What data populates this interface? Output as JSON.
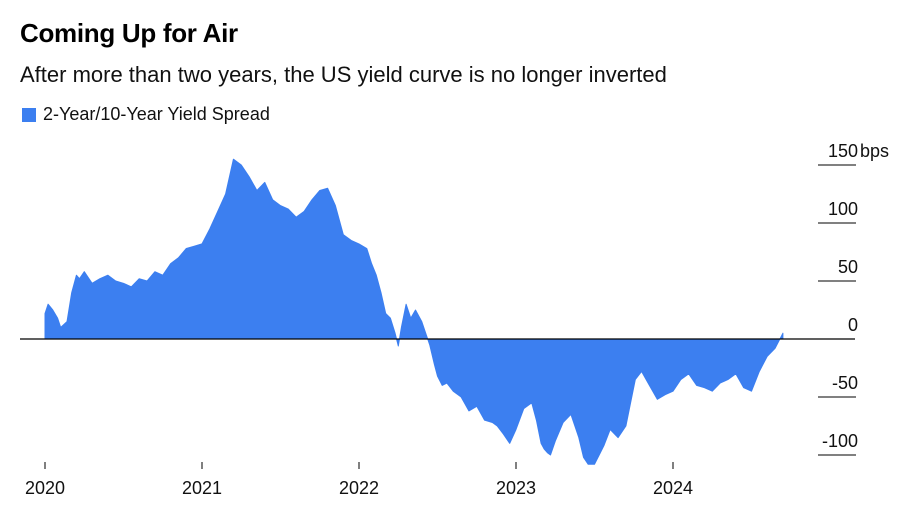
{
  "header": {
    "title": "Coming Up for Air",
    "subtitle": "After more than two years, the US yield curve is no longer inverted"
  },
  "legend": {
    "label": "2-Year/10-Year Yield Spread",
    "color": "#3c7ff0"
  },
  "chart_data": {
    "type": "area",
    "title": "Coming Up for Air",
    "subtitle": "After more than two years, the US yield curve is no longer inverted",
    "series": [
      {
        "name": "2-Year/10-Year Yield Spread",
        "color": "#3c7ff0",
        "x": [
          2020.0,
          2020.02,
          2020.05,
          2020.08,
          2020.1,
          2020.14,
          2020.17,
          2020.2,
          2020.22,
          2020.25,
          2020.3,
          2020.35,
          2020.4,
          2020.45,
          2020.5,
          2020.55,
          2020.6,
          2020.65,
          2020.7,
          2020.75,
          2020.8,
          2020.85,
          2020.9,
          2020.95,
          2021.0,
          2021.05,
          2021.1,
          2021.15,
          2021.2,
          2021.25,
          2021.3,
          2021.35,
          2021.4,
          2021.45,
          2021.5,
          2021.55,
          2021.6,
          2021.65,
          2021.7,
          2021.75,
          2021.8,
          2021.85,
          2021.9,
          2021.95,
          2022.0,
          2022.05,
          2022.08,
          2022.11,
          2022.14,
          2022.17,
          2022.2,
          2022.23,
          2022.25,
          2022.27,
          2022.3,
          2022.33,
          2022.36,
          2022.4,
          2022.43,
          2022.45,
          2022.48,
          2022.5,
          2022.53,
          2022.56,
          2022.6,
          2022.65,
          2022.7,
          2022.75,
          2022.8,
          2022.85,
          2022.88,
          2022.92,
          2022.96,
          2023.0,
          2023.05,
          2023.1,
          2023.13,
          2023.16,
          2023.18,
          2023.2,
          2023.22,
          2023.25,
          2023.3,
          2023.35,
          2023.4,
          2023.43,
          2023.46,
          2023.5,
          2023.53,
          2023.56,
          2023.6,
          2023.65,
          2023.7,
          2023.73,
          2023.76,
          2023.8,
          2023.85,
          2023.9,
          2023.95,
          2024.0,
          2024.05,
          2024.1,
          2024.15,
          2024.2,
          2024.25,
          2024.3,
          2024.35,
          2024.4,
          2024.45,
          2024.5,
          2024.55,
          2024.6,
          2024.65,
          2024.7
        ],
        "values": [
          22,
          30,
          25,
          18,
          10,
          15,
          40,
          55,
          52,
          58,
          48,
          52,
          55,
          50,
          48,
          45,
          52,
          50,
          58,
          55,
          65,
          70,
          78,
          80,
          82,
          95,
          110,
          125,
          155,
          150,
          140,
          128,
          135,
          120,
          115,
          112,
          105,
          110,
          120,
          128,
          130,
          115,
          90,
          85,
          82,
          78,
          65,
          55,
          40,
          22,
          18,
          5,
          -6,
          10,
          30,
          18,
          25,
          15,
          3,
          -5,
          -22,
          -32,
          -40,
          -38,
          -45,
          -50,
          -62,
          -58,
          -70,
          -72,
          -75,
          -82,
          -90,
          -78,
          -60,
          -55,
          -70,
          -90,
          -95,
          -98,
          -100,
          -88,
          -72,
          -65,
          -85,
          -102,
          -108,
          -108,
          -100,
          -92,
          -78,
          -85,
          -75,
          -55,
          -35,
          -28,
          -40,
          -52,
          -48,
          -45,
          -35,
          -30,
          -40,
          -42,
          -45,
          -38,
          -35,
          -30,
          -42,
          -45,
          -28,
          -15,
          -8,
          5
        ]
      }
    ],
    "xlim": [
      2020,
      2025.0
    ],
    "ylim": [
      -100,
      150
    ],
    "xticks": [
      2020,
      2021,
      2022,
      2023,
      2024
    ],
    "xtick_labels": [
      "2020",
      "2021",
      "2022",
      "2023",
      "2024"
    ],
    "yticks": [
      150,
      100,
      50,
      0,
      -50,
      -100
    ],
    "ytick_labels": [
      "150",
      "100",
      "50",
      "0",
      "-50",
      "-100"
    ],
    "y_unit": "bps",
    "xlabel": "",
    "ylabel": "",
    "grid": false,
    "legend_position": "top-left"
  }
}
